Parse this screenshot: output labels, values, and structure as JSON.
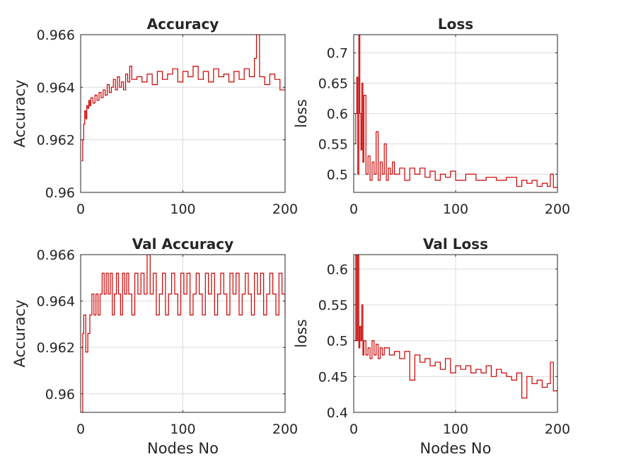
{
  "chart_data": [
    {
      "type": "line",
      "title": "Accuracy",
      "xlabel": "",
      "ylabel": "Accuracy",
      "xlim": [
        0,
        200
      ],
      "ylim": [
        0.96,
        0.966
      ],
      "xticks": [
        0,
        100,
        200
      ],
      "xticklabels": [
        "0",
        "100",
        "200"
      ],
      "yticks": [
        0.96,
        0.962,
        0.964,
        0.966
      ],
      "yticklabels": [
        "0.96",
        "0.962",
        "0.964",
        "0.966"
      ],
      "grid": true,
      "line_style": "stairs",
      "color": "#cc0000",
      "series": [
        {
          "x": [
            1,
            2,
            3,
            4,
            5,
            6,
            7,
            8,
            9,
            10,
            12,
            14,
            16,
            18,
            20,
            22,
            24,
            26,
            28,
            30,
            32,
            34,
            36,
            38,
            40,
            42,
            44,
            46,
            48,
            50,
            55,
            60,
            65,
            70,
            75,
            80,
            85,
            90,
            95,
            100,
            105,
            110,
            115,
            120,
            125,
            130,
            135,
            140,
            145,
            150,
            155,
            160,
            165,
            170,
            172,
            175,
            180,
            185,
            190,
            195,
            200
          ],
          "values": [
            0.9612,
            0.962,
            0.9626,
            0.9631,
            0.9628,
            0.9633,
            0.9632,
            0.9635,
            0.9633,
            0.9636,
            0.9634,
            0.9637,
            0.9635,
            0.9638,
            0.9636,
            0.9639,
            0.9637,
            0.9641,
            0.9638,
            0.964,
            0.9643,
            0.9639,
            0.9644,
            0.964,
            0.9642,
            0.9639,
            0.9645,
            0.9642,
            0.9648,
            0.9643,
            0.9644,
            0.9642,
            0.9645,
            0.9641,
            0.9646,
            0.9643,
            0.9645,
            0.9647,
            0.9642,
            0.9646,
            0.9644,
            0.9648,
            0.9643,
            0.9646,
            0.9642,
            0.9647,
            0.9644,
            0.9645,
            0.9642,
            0.9646,
            0.9643,
            0.9647,
            0.9644,
            0.9651,
            0.966,
            0.9644,
            0.9641,
            0.9645,
            0.9643,
            0.9639,
            0.9644
          ]
        }
      ]
    },
    {
      "type": "line",
      "title": "Loss",
      "xlabel": "",
      "ylabel": "loss",
      "xlim": [
        0,
        200
      ],
      "ylim": [
        0.47,
        0.73
      ],
      "xticks": [
        0,
        100,
        200
      ],
      "xticklabels": [
        "0",
        "100",
        "200"
      ],
      "yticks": [
        0.5,
        0.55,
        0.6,
        0.65,
        0.7
      ],
      "yticklabels": [
        "0.5",
        "0.55",
        "0.6",
        "0.65",
        "0.7"
      ],
      "grid": true,
      "line_style": "stairs",
      "color": "#cc0000",
      "series": [
        {
          "x": [
            1,
            2,
            3,
            4,
            5,
            6,
            7,
            8,
            9,
            10,
            12,
            14,
            16,
            18,
            20,
            22,
            24,
            26,
            28,
            30,
            32,
            34,
            36,
            38,
            40,
            45,
            50,
            55,
            60,
            65,
            70,
            75,
            80,
            85,
            90,
            95,
            100,
            110,
            120,
            130,
            140,
            150,
            160,
            165,
            170,
            175,
            180,
            185,
            190,
            193,
            196,
            200
          ],
          "values": [
            0.55,
            0.6,
            0.66,
            0.5,
            0.73,
            0.6,
            0.54,
            0.65,
            0.52,
            0.63,
            0.5,
            0.53,
            0.49,
            0.52,
            0.5,
            0.57,
            0.49,
            0.52,
            0.5,
            0.55,
            0.49,
            0.51,
            0.5,
            0.52,
            0.5,
            0.51,
            0.49,
            0.51,
            0.5,
            0.51,
            0.495,
            0.505,
            0.49,
            0.5,
            0.495,
            0.505,
            0.49,
            0.5,
            0.49,
            0.495,
            0.49,
            0.495,
            0.48,
            0.49,
            0.485,
            0.49,
            0.48,
            0.485,
            0.48,
            0.5,
            0.478,
            0.485
          ]
        }
      ]
    },
    {
      "type": "line",
      "title": "Val Accuracy",
      "xlabel": "Nodes No",
      "ylabel": "Accuracy",
      "xlim": [
        0,
        200
      ],
      "ylim": [
        0.9592,
        0.966
      ],
      "xticks": [
        0,
        100,
        200
      ],
      "xticklabels": [
        "0",
        "100",
        "200"
      ],
      "yticks": [
        0.96,
        0.962,
        0.964,
        0.966
      ],
      "yticklabels": [
        "0.96",
        "0.962",
        "0.964",
        "0.966"
      ],
      "grid": true,
      "line_style": "stairs",
      "color": "#cc0000",
      "series": [
        {
          "x": [
            1,
            2,
            3,
            5,
            7,
            9,
            11,
            13,
            15,
            17,
            19,
            21,
            23,
            25,
            27,
            29,
            31,
            33,
            35,
            37,
            39,
            41,
            43,
            45,
            47,
            50,
            53,
            56,
            59,
            62,
            65,
            68,
            71,
            74,
            77,
            80,
            83,
            86,
            89,
            92,
            95,
            98,
            101,
            104,
            107,
            110,
            113,
            116,
            119,
            122,
            125,
            128,
            131,
            134,
            137,
            140,
            143,
            146,
            149,
            152,
            155,
            158,
            161,
            164,
            167,
            170,
            173,
            176,
            179,
            182,
            185,
            188,
            191,
            194,
            197,
            200
          ],
          "values": [
            0.9592,
            0.9626,
            0.9634,
            0.9618,
            0.9626,
            0.9634,
            0.9643,
            0.9634,
            0.9643,
            0.9634,
            0.9643,
            0.9652,
            0.9643,
            0.9652,
            0.9643,
            0.9652,
            0.9634,
            0.9643,
            0.9652,
            0.9643,
            0.9634,
            0.9652,
            0.9643,
            0.9652,
            0.9643,
            0.9634,
            0.9652,
            0.9643,
            0.9652,
            0.9643,
            0.966,
            0.9643,
            0.9652,
            0.9634,
            0.9643,
            0.9652,
            0.9634,
            0.9643,
            0.9652,
            0.9643,
            0.9634,
            0.9652,
            0.9643,
            0.9652,
            0.9634,
            0.9643,
            0.9652,
            0.9643,
            0.9634,
            0.9652,
            0.9643,
            0.9652,
            0.9634,
            0.9643,
            0.9652,
            0.9643,
            0.9634,
            0.9652,
            0.9643,
            0.9652,
            0.9634,
            0.9643,
            0.9652,
            0.9643,
            0.9634,
            0.9652,
            0.9643,
            0.9652,
            0.9634,
            0.9643,
            0.9652,
            0.9643,
            0.9634,
            0.9652,
            0.9643,
            0.9634
          ]
        }
      ]
    },
    {
      "type": "line",
      "title": "Val Loss",
      "xlabel": "Nodes No",
      "ylabel": "loss",
      "xlim": [
        0,
        200
      ],
      "ylim": [
        0.4,
        0.62
      ],
      "xticks": [
        0,
        100,
        200
      ],
      "xticklabels": [
        "0",
        "100",
        "200"
      ],
      "yticks": [
        0.4,
        0.45,
        0.5,
        0.55,
        0.6
      ],
      "yticklabels": [
        "0.4",
        "0.45",
        "0.5",
        "0.55",
        "0.6"
      ],
      "grid": true,
      "line_style": "stairs",
      "color": "#cc0000",
      "series": [
        {
          "x": [
            1,
            2,
            3,
            4,
            5,
            6,
            7,
            8,
            9,
            10,
            12,
            14,
            16,
            18,
            20,
            22,
            24,
            26,
            28,
            30,
            35,
            40,
            45,
            50,
            55,
            60,
            65,
            70,
            75,
            80,
            85,
            90,
            95,
            100,
            105,
            110,
            115,
            120,
            125,
            130,
            135,
            140,
            145,
            150,
            155,
            160,
            165,
            170,
            175,
            180,
            185,
            190,
            193,
            196,
            200
          ],
          "values": [
            0.5,
            0.62,
            0.5,
            0.62,
            0.49,
            0.52,
            0.5,
            0.55,
            0.48,
            0.5,
            0.48,
            0.49,
            0.475,
            0.5,
            0.48,
            0.495,
            0.475,
            0.49,
            0.48,
            0.49,
            0.48,
            0.485,
            0.475,
            0.485,
            0.445,
            0.48,
            0.47,
            0.475,
            0.465,
            0.47,
            0.46,
            0.475,
            0.455,
            0.465,
            0.46,
            0.465,
            0.455,
            0.46,
            0.455,
            0.465,
            0.45,
            0.46,
            0.455,
            0.45,
            0.445,
            0.455,
            0.42,
            0.45,
            0.44,
            0.445,
            0.435,
            0.44,
            0.47,
            0.43,
            0.435
          ]
        }
      ]
    }
  ]
}
